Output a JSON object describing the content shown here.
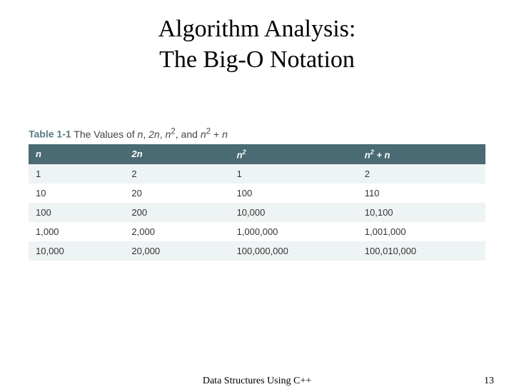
{
  "title_line1": "Algorithm Analysis:",
  "title_line2": "The Big-O Notation",
  "caption": {
    "label": "Table 1-1",
    "desc_prefix": "The Values of ",
    "terms": [
      "n",
      "2n",
      "n²",
      "n² + n"
    ]
  },
  "table": {
    "headers": [
      "n",
      "2n",
      "n²",
      "n² + n"
    ],
    "rows": [
      [
        "1",
        "2",
        "1",
        "2"
      ],
      [
        "10",
        "20",
        "100",
        "110"
      ],
      [
        "100",
        "200",
        "10,000",
        "10,100"
      ],
      [
        "1,000",
        "2,000",
        "1,000,000",
        "1,001,000"
      ],
      [
        "10,000",
        "20,000",
        "100,000,000",
        "100,010,000"
      ]
    ],
    "header_bg": "#4a6a74",
    "header_fg": "#ffffff",
    "row_alt_bg": "#eef3f4",
    "row_bg": "#ffffff",
    "font_family": "Arial",
    "header_fontsize_pt": 10,
    "cell_fontsize_pt": 10
  },
  "footer": {
    "center": "Data Structures Using C++",
    "page": "13"
  },
  "colors": {
    "background": "#ffffff",
    "title_color": "#000000",
    "caption_label_color": "#5a7a84",
    "caption_text_color": "#444444"
  }
}
